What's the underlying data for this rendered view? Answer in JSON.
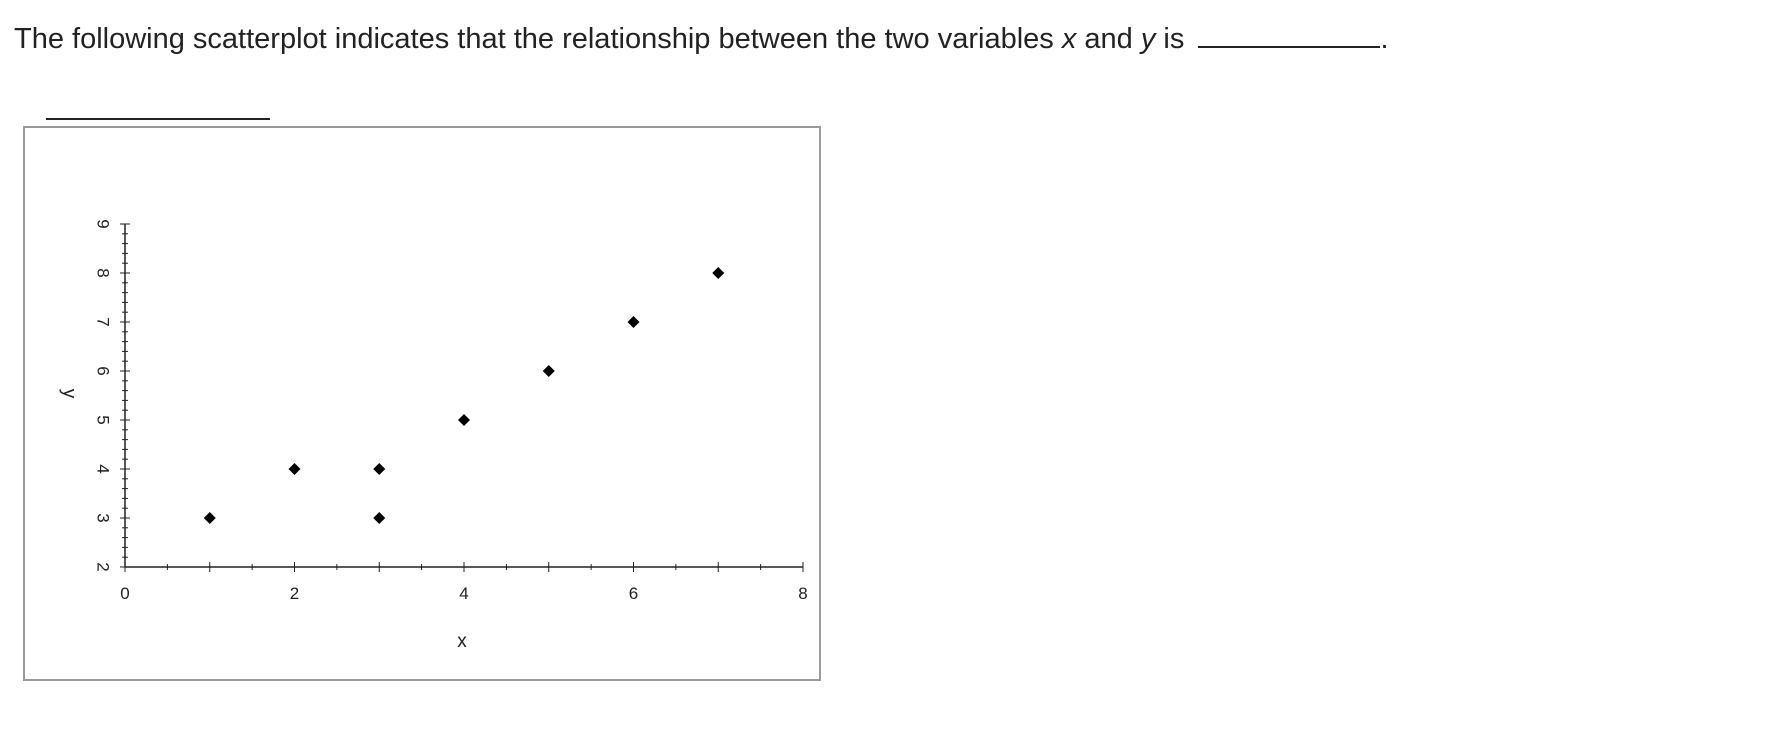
{
  "question": {
    "part1": "The following scatterplot indicates that the relationship between the two variables",
    "var_x": "x",
    "and": "and",
    "var_y": "y",
    "is": "is",
    "end": "."
  },
  "chart_data": {
    "type": "scatter",
    "xlabel": "x",
    "ylabel": "y",
    "xlim": [
      0,
      8
    ],
    "ylim": [
      2,
      9
    ],
    "x_ticks": [
      0,
      2,
      4,
      6,
      8
    ],
    "y_ticks": [
      2,
      3,
      4,
      5,
      6,
      7,
      8,
      9
    ],
    "y_tick_labels_rotated": true,
    "marker": "diamond",
    "marker_color": "#000000",
    "grid": false,
    "points": [
      {
        "x": 1,
        "y": 3
      },
      {
        "x": 2,
        "y": 4
      },
      {
        "x": 3,
        "y": 4
      },
      {
        "x": 3,
        "y": 3
      },
      {
        "x": 4,
        "y": 5
      },
      {
        "x": 5,
        "y": 6
      },
      {
        "x": 6,
        "y": 7
      },
      {
        "x": 7,
        "y": 8
      }
    ]
  }
}
